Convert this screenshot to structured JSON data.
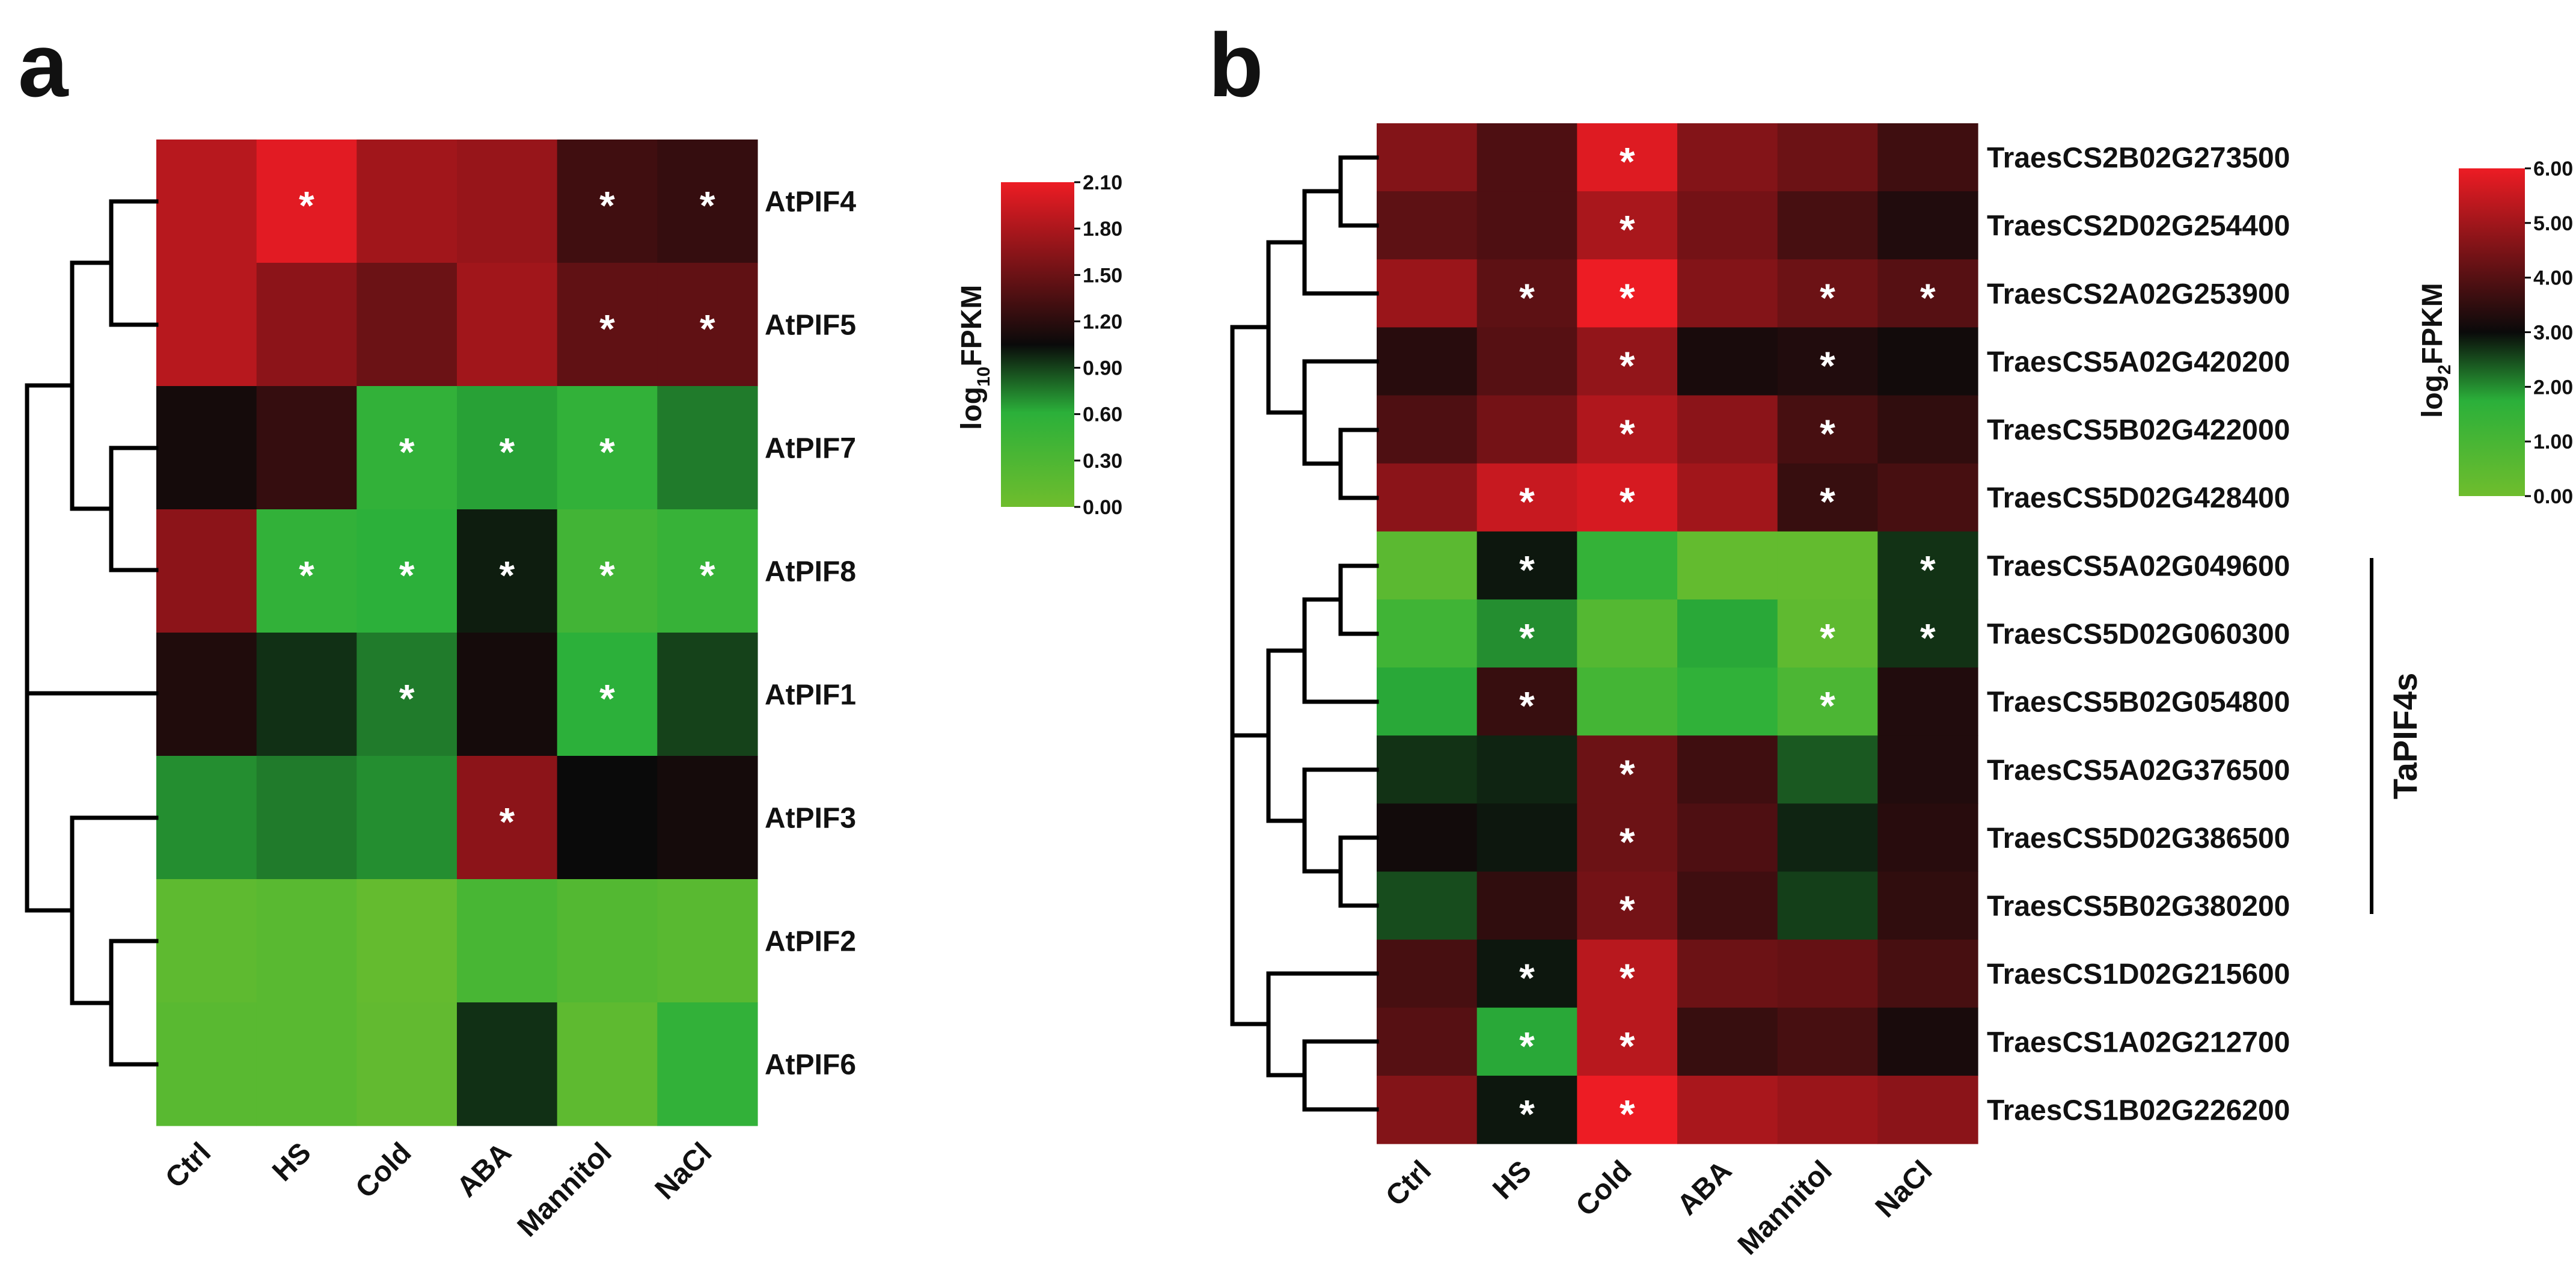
{
  "chart_data": [
    {
      "type": "heatmap",
      "panel": "a",
      "columns": [
        "Ctrl",
        "HS",
        "Cold",
        "ABA",
        "Mannitol",
        "NaCl"
      ],
      "rows": [
        "AtPIF4",
        "AtPIF5",
        "AtPIF7",
        "AtPIF8",
        "AtPIF1",
        "AtPIF3",
        "AtPIF2",
        "AtPIF6"
      ],
      "values": [
        [
          1.85,
          2.05,
          1.75,
          1.7,
          1.3,
          1.25
        ],
        [
          1.85,
          1.65,
          1.5,
          1.75,
          1.45,
          1.45
        ],
        [
          1.1,
          1.25,
          0.55,
          0.65,
          0.55,
          0.75
        ],
        [
          1.65,
          0.55,
          0.6,
          1.0,
          0.4,
          0.5
        ],
        [
          1.15,
          0.95,
          0.75,
          1.1,
          0.6,
          0.9
        ],
        [
          0.7,
          0.75,
          0.7,
          1.65,
          1.05,
          1.1
        ],
        [
          0.15,
          0.2,
          0.1,
          0.35,
          0.25,
          0.2
        ],
        [
          0.2,
          0.2,
          0.12,
          0.95,
          0.15,
          0.55
        ]
      ],
      "significant": [
        [
          false,
          true,
          false,
          false,
          true,
          true
        ],
        [
          false,
          false,
          false,
          false,
          true,
          true
        ],
        [
          false,
          false,
          true,
          true,
          true,
          false
        ],
        [
          false,
          true,
          true,
          true,
          true,
          true
        ],
        [
          false,
          false,
          true,
          false,
          true,
          false
        ],
        [
          false,
          false,
          false,
          true,
          false,
          false
        ],
        [
          false,
          false,
          false,
          false,
          false,
          false
        ],
        [
          false,
          false,
          false,
          false,
          false,
          false
        ]
      ],
      "star_symbol": "*",
      "colorbar": {
        "ticks": [
          "2.10",
          "1.80",
          "1.50",
          "1.20",
          "0.90",
          "0.60",
          "0.30",
          "0.00"
        ],
        "title": "log",
        "title_sub": "10",
        "title_main": "FPKM",
        "min": 0.0,
        "max": 2.1,
        "colors": [
          "#6fbd2d",
          "#2bb03a",
          "#0a0a0a",
          "#ed1c24"
        ]
      }
    },
    {
      "type": "heatmap",
      "panel": "b",
      "columns": [
        "Ctrl",
        "HS",
        "Cold",
        "ABA",
        "Mannitol",
        "NaCl"
      ],
      "rows": [
        "TraesCS2B02G273500",
        "TraesCS2D02G254400",
        "TraesCS2A02G253900",
        "TraesCS5A02G420200",
        "TraesCS5B02G422000",
        "TraesCS5D02G428400",
        "TraesCS5A02G049600",
        "TraesCS5D02G060300",
        "TraesCS5B02G054800",
        "TraesCS5A02G376500",
        "TraesCS5D02G386500",
        "TraesCS5B02G380200",
        "TraesCS1D02G215600",
        "TraesCS1A02G212700",
        "TraesCS1B02G226200"
      ],
      "values": [
        [
          4.6,
          3.9,
          5.8,
          4.6,
          4.3,
          3.7
        ],
        [
          4.1,
          3.9,
          5.1,
          4.4,
          3.8,
          3.3
        ],
        [
          4.9,
          4.1,
          6.0,
          4.6,
          4.3,
          4.0
        ],
        [
          3.4,
          4.0,
          4.8,
          3.2,
          3.3,
          3.1
        ],
        [
          3.9,
          4.4,
          5.2,
          4.7,
          3.8,
          3.5
        ],
        [
          4.7,
          5.5,
          5.7,
          5.0,
          3.6,
          3.8
        ],
        [
          0.5,
          2.9,
          1.5,
          0.3,
          0.3,
          2.7
        ],
        [
          1.2,
          2.0,
          0.7,
          1.8,
          0.4,
          2.7
        ],
        [
          1.8,
          3.6,
          1.1,
          1.6,
          0.9,
          3.3
        ],
        [
          2.7,
          2.8,
          4.3,
          3.7,
          2.4,
          3.3
        ],
        [
          3.1,
          2.9,
          4.3,
          3.9,
          2.8,
          3.4
        ],
        [
          2.5,
          3.5,
          4.4,
          3.7,
          2.6,
          3.5
        ],
        [
          3.8,
          2.9,
          5.3,
          4.3,
          4.2,
          3.8
        ],
        [
          4.0,
          1.8,
          5.3,
          3.6,
          3.8,
          3.2
        ],
        [
          4.6,
          2.9,
          6.0,
          5.1,
          4.9,
          4.7
        ]
      ],
      "significant": [
        [
          false,
          false,
          true,
          false,
          false,
          false
        ],
        [
          false,
          false,
          true,
          false,
          false,
          false
        ],
        [
          false,
          true,
          true,
          false,
          true,
          true
        ],
        [
          false,
          false,
          true,
          false,
          true,
          false
        ],
        [
          false,
          false,
          true,
          false,
          true,
          false
        ],
        [
          false,
          true,
          true,
          false,
          true,
          false
        ],
        [
          false,
          true,
          false,
          false,
          false,
          true
        ],
        [
          false,
          true,
          false,
          false,
          true,
          true
        ],
        [
          false,
          true,
          false,
          false,
          true,
          false
        ],
        [
          false,
          false,
          true,
          false,
          false,
          false
        ],
        [
          false,
          false,
          true,
          false,
          false,
          false
        ],
        [
          false,
          false,
          true,
          false,
          false,
          false
        ],
        [
          false,
          true,
          true,
          false,
          false,
          false
        ],
        [
          false,
          true,
          true,
          false,
          false,
          false
        ],
        [
          false,
          true,
          true,
          false,
          false,
          false
        ]
      ],
      "star_symbol": "*",
      "group_label": "TaPIF4s",
      "group_rows": [
        6,
        11
      ],
      "colorbar": {
        "ticks": [
          "6.00",
          "5.00",
          "4.00",
          "3.00",
          "2.00",
          "1.00",
          "0.00"
        ],
        "title": "log",
        "title_sub": "2",
        "title_main": "FPKM",
        "min": 0.0,
        "max": 6.0,
        "colors": [
          "#6fbd2d",
          "#2bb03a",
          "#0a0a0a",
          "#ed1c24"
        ]
      }
    }
  ]
}
